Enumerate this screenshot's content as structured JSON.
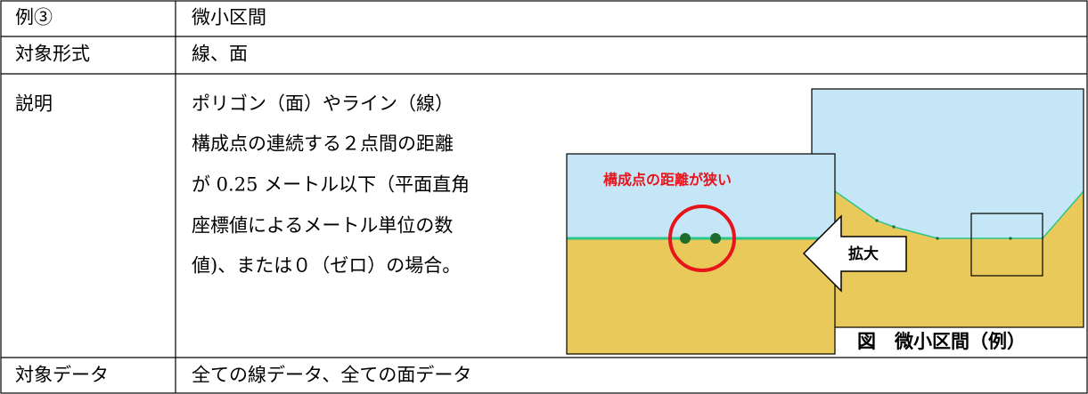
{
  "table": {
    "rows": [
      [
        "例③",
        "微小区間"
      ],
      [
        "対象形式",
        "線、面"
      ],
      [
        "説明",
        [
          "ポリゴン（面）やライン（線）",
          "構成点の連続する２点間の距離",
          "が 0.25 メートル以下（平面直角",
          "座標値によるメートル単位の数",
          "値)、または０（ゼロ）の場合。"
        ]
      ],
      [
        "対象データ",
        "全ての線データ、全ての面データ"
      ]
    ]
  },
  "figure": {
    "note": "構成点の距離が狭い",
    "arrow_label": "拡大",
    "caption": "図　微小区間（例）"
  }
}
